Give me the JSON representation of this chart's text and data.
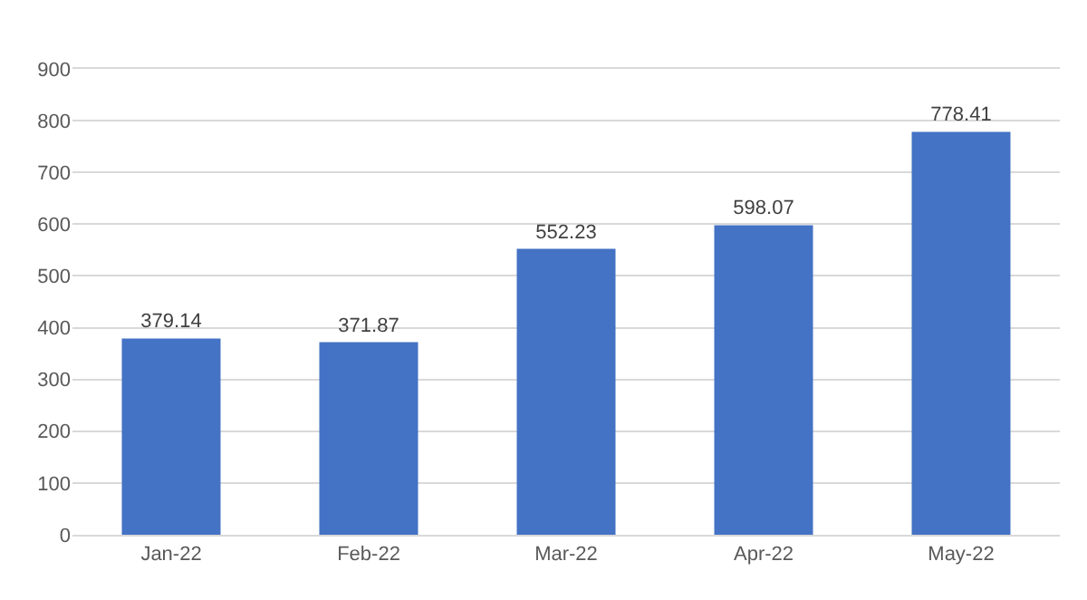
{
  "chart_data": {
    "type": "bar",
    "categories": [
      "Jan-22",
      "Feb-22",
      "Mar-22",
      "Apr-22",
      "May-22"
    ],
    "values": [
      379.14,
      371.87,
      552.23,
      598.07,
      778.41
    ],
    "color": "#4472c4",
    "ylim": [
      0,
      900
    ],
    "yticks": [
      0,
      100,
      200,
      300,
      400,
      500,
      600,
      700,
      800,
      900
    ],
    "grid": "y",
    "data_labels": true
  }
}
